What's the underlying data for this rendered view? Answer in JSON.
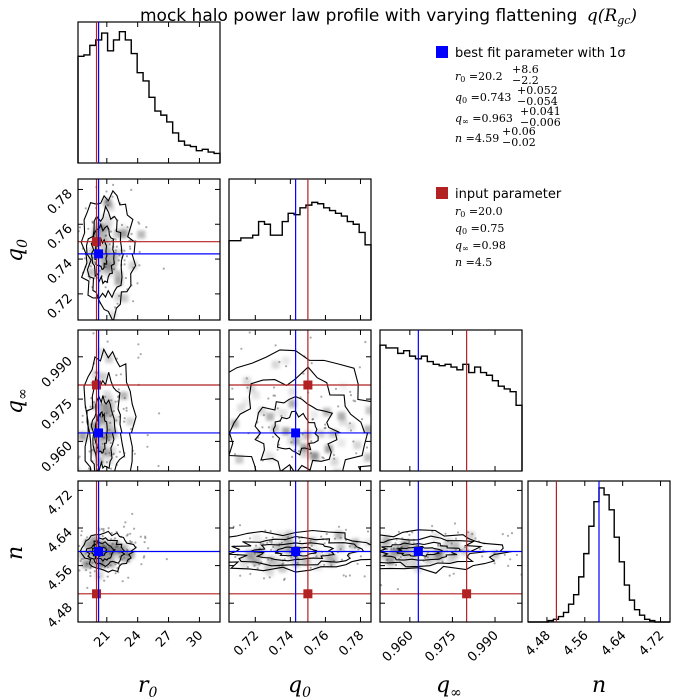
{
  "title": "mock halo power law profile with varying flattening q(R_gc)",
  "title_text": "mock halo power law profile with varying flattening",
  "title_math": "q(R",
  "title_math_sub": "gc",
  "title_math_close": ")",
  "colors": {
    "best_fit": "#0000ff",
    "input": "#b22222",
    "hist": "#000000"
  },
  "legend": {
    "best_fit_label": "best fit parameter with 1σ",
    "best_fit_params": [
      {
        "name": "r0",
        "value": "20.2",
        "plus": "+8.6",
        "minus": "−2.2"
      },
      {
        "name": "q0",
        "value": "0.743",
        "plus": "+0.052",
        "minus": "−0.054"
      },
      {
        "name": "q∞",
        "value": "0.963",
        "plus": "+0.041",
        "minus": "−0.006"
      },
      {
        "name": "n",
        "value": "4.59",
        "plus": "+0.06",
        "minus": "−0.02"
      }
    ],
    "input_label": "input parameter",
    "input_params": [
      {
        "name": "r0",
        "value": "20.0"
      },
      {
        "name": "q0",
        "value": "0.75"
      },
      {
        "name": "q∞",
        "value": "0.98"
      },
      {
        "name": "n",
        "value": "4.5"
      }
    ]
  },
  "chart_data": {
    "type": "corner",
    "parameters": [
      {
        "key": "r0",
        "label": "r_0",
        "range": [
          18.2,
          32
        ],
        "ticks": [
          21,
          24,
          27,
          30
        ],
        "tick_labels": [
          "21",
          "24",
          "27",
          "30"
        ],
        "best_fit": 20.2,
        "input": 20.0,
        "hist": [
          0.78,
          0.79,
          0.86,
          0.9,
          0.95,
          0.82,
          0.9,
          0.96,
          0.9,
          0.8,
          0.66,
          0.6,
          0.48,
          0.38,
          0.35,
          0.3,
          0.22,
          0.16,
          0.13,
          0.12,
          0.09,
          0.1,
          0.08,
          0.07
        ]
      },
      {
        "key": "q0",
        "label": "q_0",
        "range": [
          0.705,
          0.786
        ],
        "ticks": [
          0.72,
          0.74,
          0.76,
          0.78
        ],
        "tick_labels": [
          "0.72",
          "0.74",
          "0.76",
          "0.78"
        ],
        "best_fit": 0.743,
        "input": 0.75,
        "hist": [
          0.58,
          0.58,
          0.6,
          0.6,
          0.62,
          0.72,
          0.7,
          0.62,
          0.62,
          0.72,
          0.78,
          0.77,
          0.82,
          0.84,
          0.86,
          0.85,
          0.82,
          0.8,
          0.78,
          0.76,
          0.72,
          0.7,
          0.64,
          0.55
        ]
      },
      {
        "key": "qinf",
        "label": "q_∞",
        "range": [
          0.9495,
          0.9995
        ],
        "ticks": [
          0.96,
          0.975,
          0.99
        ],
        "tick_labels": [
          "0.960",
          "0.975",
          "0.990"
        ],
        "best_fit": 0.963,
        "input": 0.98,
        "hist": [
          0.92,
          0.9,
          0.9,
          0.86,
          0.88,
          0.84,
          0.82,
          0.84,
          0.8,
          0.78,
          0.77,
          0.78,
          0.76,
          0.74,
          0.78,
          0.72,
          0.76,
          0.72,
          0.7,
          0.66,
          0.62,
          0.6,
          0.58,
          0.48
        ]
      },
      {
        "key": "n",
        "label": "n",
        "range": [
          4.44,
          4.74
        ],
        "ticks": [
          4.48,
          4.56,
          4.64,
          4.72
        ],
        "tick_labels": [
          "4.48",
          "4.56",
          "4.64",
          "4.72"
        ],
        "best_fit": 4.59,
        "input": 4.5,
        "hist": [
          0.0,
          0.0,
          0.0,
          0.0,
          0.01,
          0.02,
          0.04,
          0.07,
          0.13,
          0.2,
          0.33,
          0.5,
          0.7,
          0.88,
          0.98,
          0.93,
          0.82,
          0.62,
          0.44,
          0.27,
          0.16,
          0.09,
          0.05,
          0.02,
          0.01,
          0.0,
          0.0,
          0.0
        ]
      }
    ],
    "axis_labels": {
      "x": [
        "r",
        "q",
        "q",
        "n"
      ],
      "x_sub": [
        "0",
        "0",
        "∞",
        ""
      ],
      "y": [
        "q",
        "q",
        "n"
      ],
      "y_sub": [
        "0",
        "∞",
        ""
      ]
    },
    "grid": false,
    "legend_position": "top-right"
  }
}
